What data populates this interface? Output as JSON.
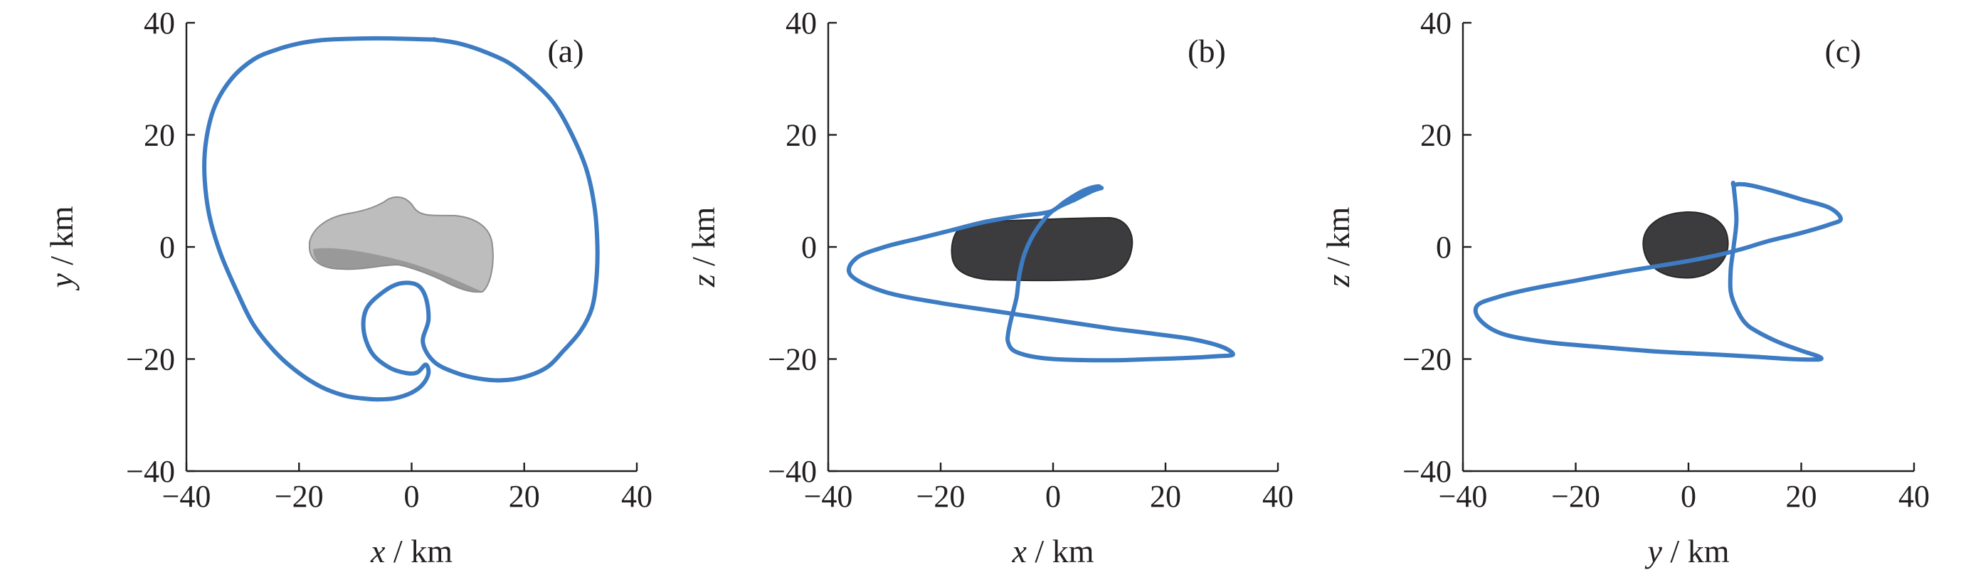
{
  "chart_data": [
    {
      "type": "line",
      "panel_label": "(a)",
      "xlabel_var": "x",
      "xlabel_unit": " / km",
      "ylabel_var": "y",
      "ylabel_unit": " / km",
      "xlim": [
        -40,
        40
      ],
      "ylim": [
        -40,
        40
      ],
      "xticks": [
        -40,
        -20,
        0,
        20,
        40
      ],
      "yticks": [
        -40,
        -20,
        0,
        20,
        40
      ],
      "xtick_labels": [
        "−40",
        "−20",
        "0",
        "20",
        "40"
      ],
      "ytick_labels": [
        "−40",
        "−20",
        "0",
        "20",
        "40"
      ],
      "grid": false,
      "body_shape": "elongated asteroid (light grey, shaded 3D render)",
      "series": [
        {
          "color": "#3d7cc2",
          "x": [
            4,
            8,
            12,
            17,
            21,
            25,
            28,
            31,
            32.5,
            33,
            32.8,
            32,
            30,
            27,
            24,
            20,
            16,
            12,
            8,
            4,
            2,
            3,
            2.5,
            1,
            -2,
            -5,
            -8,
            -8.5,
            -7,
            -4,
            -1,
            1,
            2.5,
            3,
            2,
            0,
            -3,
            -6,
            -9,
            -12,
            -16,
            -20,
            -24,
            -28,
            -31,
            -34,
            -36,
            -36.8,
            -36.5,
            -35,
            -32,
            -28,
            -24,
            -20,
            -16,
            -12,
            -8,
            -4,
            0,
            4
          ],
          "y": [
            37,
            36.4,
            35.2,
            33,
            30,
            26,
            21,
            14,
            7,
            0,
            -6,
            -11,
            -15,
            -18.5,
            -21.5,
            -23.2,
            -23.8,
            -23.5,
            -22.5,
            -20.5,
            -17,
            -13,
            -9,
            -6.8,
            -6.5,
            -8,
            -11,
            -15,
            -19,
            -21.5,
            -22.5,
            -22.4,
            -21,
            -22.5,
            -24.5,
            -26,
            -27,
            -27.2,
            -27,
            -26.5,
            -25,
            -22.5,
            -19,
            -14,
            -8,
            -1,
            6,
            13,
            19,
            25,
            30,
            33.5,
            35.2,
            36.3,
            36.9,
            37.1,
            37.2,
            37.2,
            37.1,
            37
          ]
        }
      ]
    },
    {
      "type": "line",
      "panel_label": "(b)",
      "xlabel_var": "x",
      "xlabel_unit": " / km",
      "ylabel_var": "z",
      "ylabel_unit": " / km",
      "xlim": [
        -40,
        40
      ],
      "ylim": [
        -40,
        40
      ],
      "xticks": [
        -40,
        -20,
        0,
        20,
        40
      ],
      "yticks": [
        -40,
        -20,
        0,
        20,
        40
      ],
      "xtick_labels": [
        "−40",
        "−20",
        "0",
        "20",
        "40"
      ],
      "ytick_labels": [
        "−40",
        "−20",
        "0",
        "20",
        "40"
      ],
      "grid": false,
      "body_shape": "elongated asteroid (dark grey, side view)",
      "series": [
        {
          "color": "#3d7cc2",
          "x": [
            8.5,
            7,
            4,
            0,
            -3,
            -5,
            -6,
            -6.5,
            -7.5,
            -8,
            -8,
            -7,
            -4,
            0,
            6,
            12,
            18,
            24,
            29,
            32,
            30,
            25,
            18,
            10,
            0,
            -10,
            -20,
            -30,
            -36,
            -35,
            -30,
            -24,
            -18,
            -12,
            -6,
            -2,
            0,
            2,
            4,
            6,
            8,
            8.5
          ],
          "y": [
            10.5,
            10,
            8.5,
            6.5,
            3,
            -1,
            -5,
            -9,
            -13,
            -15.5,
            -17,
            -18.5,
            -19.5,
            -20,
            -20.2,
            -20.2,
            -20,
            -19.8,
            -19.5,
            -19.2,
            -17.8,
            -16.5,
            -15.5,
            -14.5,
            -13,
            -11.5,
            -10,
            -8,
            -5,
            -2,
            0,
            1.5,
            3,
            4.5,
            5.5,
            6,
            6.5,
            8,
            9.3,
            10.3,
            10.8,
            10.5
          ]
        }
      ]
    },
    {
      "type": "line",
      "panel_label": "(c)",
      "xlabel_var": "y",
      "xlabel_unit": " / km",
      "ylabel_var": "z",
      "ylabel_unit": " / km",
      "xlim": [
        -40,
        40
      ],
      "ylim": [
        -40,
        40
      ],
      "xticks": [
        -40,
        -20,
        0,
        20,
        40
      ],
      "yticks": [
        -40,
        -20,
        0,
        20,
        40
      ],
      "xtick_labels": [
        "−40",
        "−20",
        "0",
        "20",
        "40"
      ],
      "ytick_labels": [
        "−40",
        "−20",
        "0",
        "20",
        "40"
      ],
      "grid": false,
      "body_shape": "rounded asteroid (dark grey, end view)",
      "series": [
        {
          "color": "#3d7cc2",
          "x": [
            8,
            8.5,
            8,
            7.5,
            7.5,
            8.5,
            10,
            12,
            16,
            20,
            23,
            23.5,
            22,
            18,
            12,
            5,
            -5,
            -15,
            -25,
            -33,
            -37,
            -37.5,
            -34,
            -28,
            -20,
            -12,
            -6,
            0,
            5,
            9,
            14,
            20,
            25,
            27,
            25,
            20,
            15,
            11,
            9,
            8
          ],
          "y": [
            11,
            5,
            0,
            -4,
            -8,
            -11,
            -13.5,
            -15,
            -17,
            -18.5,
            -19.5,
            -20,
            -20.1,
            -20,
            -19.6,
            -19.2,
            -18.7,
            -17.9,
            -17,
            -15.5,
            -13,
            -10.5,
            -9,
            -7.5,
            -6,
            -4.5,
            -3.5,
            -2.5,
            -1.5,
            -0.5,
            1,
            2.5,
            4,
            5,
            7,
            8.5,
            10,
            11,
            11.2,
            11
          ]
        }
      ]
    }
  ]
}
